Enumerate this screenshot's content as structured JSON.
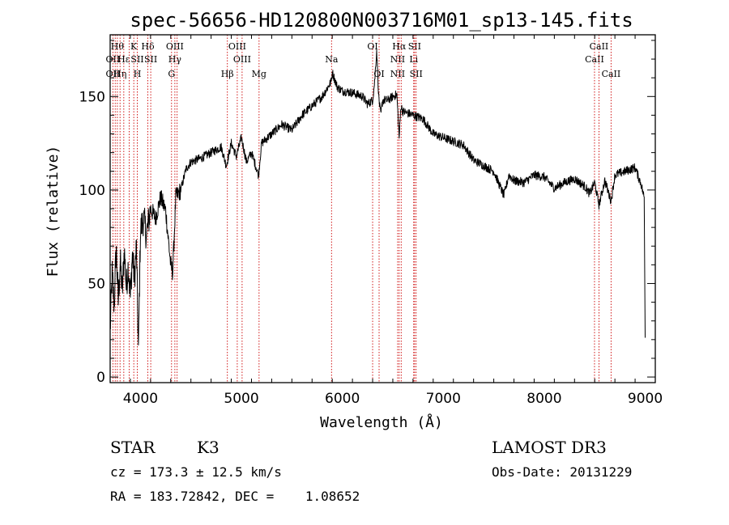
{
  "chart_data": {
    "type": "line",
    "title": "spec-56656-HD120800N003716M01_sp13-145.fits",
    "xlabel": "Wavelength (Å)",
    "ylabel": "Flux (relative)",
    "xlim": [
      3700,
      9100
    ],
    "ylim": [
      -3,
      183
    ],
    "x_ticks": [
      4000,
      5000,
      6000,
      7000,
      8000,
      9000
    ],
    "y_ticks": [
      0,
      50,
      100,
      150
    ],
    "grid": false,
    "series": [
      {
        "line_color": "#000000",
        "points": [
          [
            3700,
            25
          ],
          [
            3720,
            55
          ],
          [
            3740,
            38
          ],
          [
            3760,
            70
          ],
          [
            3780,
            40
          ],
          [
            3800,
            62
          ],
          [
            3820,
            45
          ],
          [
            3840,
            68
          ],
          [
            3860,
            48
          ],
          [
            3880,
            60
          ],
          [
            3900,
            42
          ],
          [
            3920,
            66
          ],
          [
            3940,
            52
          ],
          [
            3960,
            70
          ],
          [
            3980,
            14
          ],
          [
            4000,
            78
          ],
          [
            4030,
            85
          ],
          [
            4060,
            76
          ],
          [
            4100,
            90
          ],
          [
            4150,
            85
          ],
          [
            4200,
            96
          ],
          [
            4250,
            89
          ],
          [
            4300,
            60
          ],
          [
            4320,
            56
          ],
          [
            4350,
            96
          ],
          [
            4400,
            100
          ],
          [
            4450,
            111
          ],
          [
            4500,
            115
          ],
          [
            4600,
            117
          ],
          [
            4700,
            120
          ],
          [
            4800,
            123
          ],
          [
            4850,
            113
          ],
          [
            4900,
            125
          ],
          [
            4950,
            118
          ],
          [
            5000,
            128
          ],
          [
            5050,
            115
          ],
          [
            5100,
            120
          ],
          [
            5170,
            108
          ],
          [
            5200,
            125
          ],
          [
            5300,
            130
          ],
          [
            5400,
            135
          ],
          [
            5500,
            132
          ],
          [
            5600,
            140
          ],
          [
            5700,
            145
          ],
          [
            5800,
            150
          ],
          [
            5890,
            158
          ],
          [
            5900,
            163
          ],
          [
            5950,
            155
          ],
          [
            6000,
            153
          ],
          [
            6100,
            152
          ],
          [
            6200,
            150
          ],
          [
            6250,
            146
          ],
          [
            6300,
            148
          ],
          [
            6320,
            158
          ],
          [
            6340,
            175
          ],
          [
            6360,
            150
          ],
          [
            6380,
            140
          ],
          [
            6400,
            148
          ],
          [
            6450,
            148
          ],
          [
            6500,
            150
          ],
          [
            6540,
            151
          ],
          [
            6563,
            128
          ],
          [
            6580,
            145
          ],
          [
            6600,
            142
          ],
          [
            6700,
            140
          ],
          [
            6800,
            138
          ],
          [
            6900,
            130
          ],
          [
            7000,
            128
          ],
          [
            7100,
            126
          ],
          [
            7200,
            124
          ],
          [
            7300,
            116
          ],
          [
            7400,
            113
          ],
          [
            7500,
            110
          ],
          [
            7600,
            97
          ],
          [
            7650,
            108
          ],
          [
            7700,
            105
          ],
          [
            7800,
            104
          ],
          [
            7900,
            108
          ],
          [
            8000,
            107
          ],
          [
            8100,
            101
          ],
          [
            8200,
            104
          ],
          [
            8300,
            106
          ],
          [
            8400,
            102
          ],
          [
            8450,
            98
          ],
          [
            8500,
            104
          ],
          [
            8542,
            92
          ],
          [
            8600,
            105
          ],
          [
            8662,
            94
          ],
          [
            8700,
            108
          ],
          [
            8800,
            110
          ],
          [
            8900,
            112
          ],
          [
            8960,
            103
          ],
          [
            8990,
            96
          ],
          [
            9000,
            21
          ]
        ]
      }
    ],
    "line_markers": [
      {
        "wl": 3727,
        "labels": [
          {
            "row": 2,
            "text": "OII"
          },
          {
            "row": 3,
            "text": "OII"
          }
        ]
      },
      {
        "wl": 3750,
        "labels": []
      },
      {
        "wl": 3771,
        "labels": [
          {
            "row": 1,
            "text": "Hθ"
          }
        ]
      },
      {
        "wl": 3798,
        "labels": [
          {
            "row": 3,
            "text": "Hη"
          }
        ]
      },
      {
        "wl": 3835,
        "labels": [
          {
            "row": 2,
            "text": "Hε"
          }
        ]
      },
      {
        "wl": 3889,
        "labels": []
      },
      {
        "wl": 3934,
        "labels": [
          {
            "row": 1,
            "text": "K"
          }
        ]
      },
      {
        "wl": 3969,
        "labels": [
          {
            "row": 2,
            "text": "SII"
          },
          {
            "row": 3,
            "text": "H"
          }
        ]
      },
      {
        "wl": 4073,
        "labels": [
          {
            "row": 1,
            "text": "Hδ"
          }
        ]
      },
      {
        "wl": 4102,
        "labels": [
          {
            "row": 2,
            "text": "SII"
          }
        ]
      },
      {
        "wl": 4308,
        "labels": [
          {
            "row": 3,
            "text": "G"
          }
        ]
      },
      {
        "wl": 4341,
        "labels": [
          {
            "row": 1,
            "text": "OIII"
          },
          {
            "row": 2,
            "text": "Hγ"
          }
        ]
      },
      {
        "wl": 4363,
        "labels": []
      },
      {
        "wl": 4861,
        "labels": [
          {
            "row": 3,
            "text": "Hβ"
          }
        ]
      },
      {
        "wl": 4959,
        "labels": [
          {
            "row": 1,
            "text": "OIII"
          }
        ]
      },
      {
        "wl": 5007,
        "labels": [
          {
            "row": 2,
            "text": "OIII"
          }
        ]
      },
      {
        "wl": 5175,
        "labels": [
          {
            "row": 3,
            "text": "Mg"
          }
        ]
      },
      {
        "wl": 5893,
        "labels": [
          {
            "row": 2,
            "text": "Na"
          }
        ]
      },
      {
        "wl": 6300,
        "labels": [
          {
            "row": 1,
            "text": "OI"
          }
        ]
      },
      {
        "wl": 6364,
        "labels": [
          {
            "row": 3,
            "text": "OI"
          }
        ]
      },
      {
        "wl": 6548,
        "labels": [
          {
            "row": 2,
            "text": "NII"
          },
          {
            "row": 3,
            "text": "NII"
          }
        ]
      },
      {
        "wl": 6563,
        "labels": [
          {
            "row": 1,
            "text": "Hα"
          }
        ]
      },
      {
        "wl": 6583,
        "labels": []
      },
      {
        "wl": 6707,
        "labels": [
          {
            "row": 2,
            "text": "Li"
          }
        ]
      },
      {
        "wl": 6716,
        "labels": [
          {
            "row": 1,
            "text": "SII"
          }
        ]
      },
      {
        "wl": 6731,
        "labels": [
          {
            "row": 3,
            "text": "SII"
          }
        ]
      },
      {
        "wl": 8498,
        "labels": [
          {
            "row": 2,
            "text": "CaII"
          }
        ]
      },
      {
        "wl": 8542,
        "labels": [
          {
            "row": 1,
            "text": "CaII"
          }
        ]
      },
      {
        "wl": 8662,
        "labels": [
          {
            "row": 3,
            "text": "CaII"
          }
        ]
      }
    ],
    "colors": {
      "spectrum": "#000000",
      "line_markers": "#cc0000",
      "axes": "#000000"
    }
  },
  "info": {
    "class_label": "STAR",
    "subclass_label": "K3",
    "survey_label": "LAMOST DR3",
    "redshift_text": "cz = 173.3 ± 12.5 km/s",
    "obs_date_text": "Obs-Date: 20131229",
    "coords_text": "RA = 183.72842, DEC =    1.08652"
  }
}
